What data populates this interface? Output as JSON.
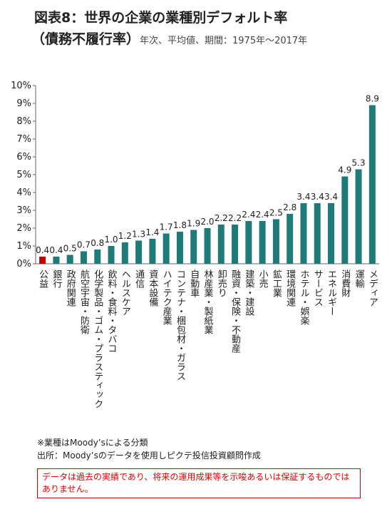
{
  "chart_data": {
    "type": "bar",
    "title": "図表8：世界の企業の業種別デフォルト率",
    "subtitle_main": "（債務不履行率）",
    "subtitle": "年次、平均値、期間：1975年～2017年",
    "categories": [
      "公益",
      "銀行",
      "政府関連",
      "航空宇宙・防衛",
      "化学製品・ゴム・プラスティック",
      "飲料・食料・タバコ",
      "ヘルスケア",
      "通信",
      "資本設備",
      "ハイテク産業",
      "コンテナ・梱包材・ガラス",
      "自動車",
      "林産業・製紙業",
      "卸売り",
      "融資・保険・不動産",
      "建築・建設",
      "小売",
      "鉱工業",
      "環境関連",
      "ホテル・娯楽",
      "サービス",
      "エネルギー",
      "消費財",
      "運輸",
      "メディア"
    ],
    "values": [
      0.4,
      0.4,
      0.5,
      0.7,
      0.8,
      1.0,
      1.2,
      1.3,
      1.4,
      1.7,
      1.8,
      1.9,
      2.0,
      2.2,
      2.2,
      2.4,
      2.4,
      2.5,
      2.8,
      3.4,
      3.4,
      3.4,
      4.9,
      5.3,
      8.9
    ],
    "value_labels": [
      "0.4",
      "0.4",
      "0.5",
      "0.7",
      "0.8",
      "1.0",
      "1.2",
      "1.3",
      "1.4",
      "1.7",
      "1.8",
      "1.9",
      "2.0",
      "2.2",
      "2.2",
      "2.4",
      "2.4",
      "2.5",
      "2.8",
      "3.4",
      "3.4",
      "3.4",
      "4.9",
      "5.3",
      "8.9"
    ],
    "colors": [
      "#c00000",
      "#1f7a7a",
      "#1f7a7a",
      "#1f7a7a",
      "#1f7a7a",
      "#1f7a7a",
      "#1f7a7a",
      "#1f7a7a",
      "#1f7a7a",
      "#1f7a7a",
      "#1f7a7a",
      "#1f7a7a",
      "#1f7a7a",
      "#1f7a7a",
      "#1f7a7a",
      "#1f7a7a",
      "#1f7a7a",
      "#1f7a7a",
      "#1f7a7a",
      "#1f7a7a",
      "#1f7a7a",
      "#1f7a7a",
      "#1f7a7a",
      "#1f7a7a",
      "#1f7a7a"
    ],
    "ylim": [
      0,
      10
    ],
    "yticks": [
      {
        "value": 0,
        "label": "0%"
      },
      {
        "value": 1,
        "label": "1%"
      },
      {
        "value": 2,
        "label": "2%"
      },
      {
        "value": 3,
        "label": "3%"
      },
      {
        "value": 4,
        "label": "4%"
      },
      {
        "value": 5,
        "label": "5%"
      },
      {
        "value": 6,
        "label": "6%"
      },
      {
        "value": 7,
        "label": "7%"
      },
      {
        "value": 8,
        "label": "8%"
      },
      {
        "value": 9,
        "label": "9%"
      },
      {
        "value": 10,
        "label": "10%"
      }
    ],
    "grid": false,
    "notes": [
      "※業種はMoody’sによる分類",
      "出所：Moody’sのデータを使用しピクテ投信投資顧問作成"
    ],
    "disclaimer": "データは過去の実績であり、将来の運用成果等を示唆あるいは保証するものではありません。"
  }
}
